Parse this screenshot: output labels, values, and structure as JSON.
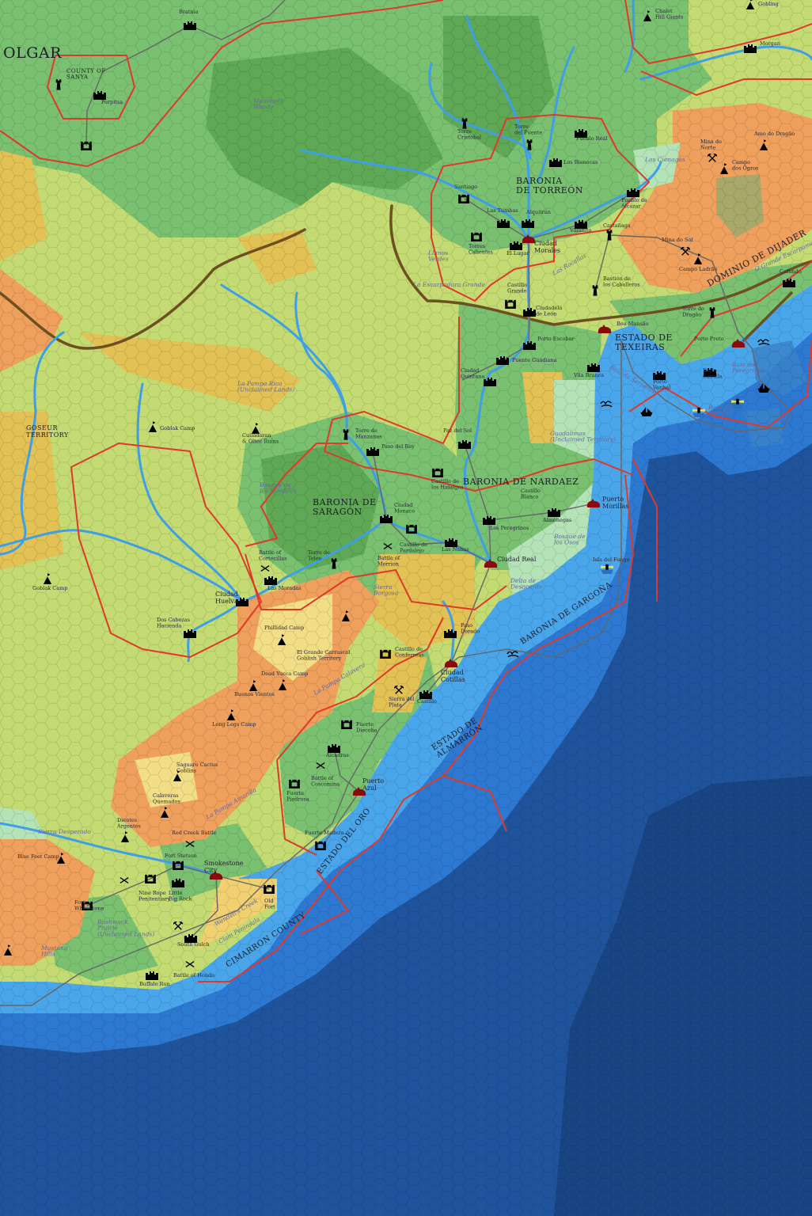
{
  "colors": {
    "deepest_sea": "#184482",
    "deep_sea": "#1f549c",
    "sea": "#2d79d2",
    "shallow_sea": "#4aa6ea",
    "grassland": "#c3db72",
    "forest": "#79c070",
    "dense_forest": "#5fa856",
    "hills": "#e2c155",
    "desert": "#eea05c",
    "cactus_desert": "#f2de86",
    "swamp": "#b5e3b8",
    "beach": "#f0d070",
    "border": "#e0392a",
    "river": "#3f9fe6",
    "road": "#666666",
    "escarpment": "#6e4f22",
    "city": "#8b0b0b"
  },
  "icon_types": [
    "castle-icon",
    "fort-icon",
    "tower-icon",
    "city-icon",
    "camp-icon",
    "battle-icon",
    "mine-icon",
    "ship-icon",
    "lighthouse-icon",
    "sea-monster-icon"
  ],
  "labels": [
    {
      "kind": "realm",
      "text": [
        "OLGAR"
      ]
    },
    {
      "kind": "realm",
      "text": [
        "COUNTY OF",
        "SANYA"
      ]
    },
    {
      "kind": "realm",
      "text": [
        "BARONIA",
        "DE TORREÓN"
      ]
    },
    {
      "kind": "realm",
      "text": [
        "BARONIA DE",
        "SARAGÓN"
      ]
    },
    {
      "kind": "realm",
      "text": [
        "BARONIA DE NARDAEZ"
      ]
    },
    {
      "kind": "realm",
      "text": [
        "ESTADO DE",
        "TEXEIRAS"
      ]
    },
    {
      "kind": "realm",
      "text": [
        "DOMINIO DE DIJADER"
      ]
    },
    {
      "kind": "realm",
      "text": [
        "BARONIA DE GARGOÑA"
      ]
    },
    {
      "kind": "realm",
      "text": [
        "ESTADO DE",
        "ALMARRÓN"
      ]
    },
    {
      "kind": "realm",
      "text": [
        "ESTADO DEL ORO"
      ]
    },
    {
      "kind": "realm",
      "text": [
        "CIMARRON COUNTY"
      ]
    },
    {
      "kind": "realm",
      "text": [
        "GOSEUR",
        "TERRITORY"
      ]
    },
    {
      "kind": "place",
      "text": [
        "Bratnia"
      ]
    },
    {
      "kind": "place",
      "text": [
        "Perpitsa"
      ]
    },
    {
      "kind": "feature",
      "text": [
        "Mammoth",
        "Woods"
      ]
    },
    {
      "kind": "place",
      "text": [
        "Chalet",
        "Hill Giants"
      ]
    },
    {
      "kind": "place",
      "text": [
        "Gobling"
      ]
    },
    {
      "kind": "place",
      "text": [
        "Morgan"
      ]
    },
    {
      "kind": "place",
      "text": [
        "Torre",
        "Cristobal"
      ]
    },
    {
      "kind": "place",
      "text": [
        "Torre",
        "del Puente"
      ]
    },
    {
      "kind": "place",
      "text": [
        "Pueblo Real"
      ]
    },
    {
      "kind": "place",
      "text": [
        "Los Bionocas"
      ]
    },
    {
      "kind": "feature",
      "text": [
        "Las Cienagas"
      ]
    },
    {
      "kind": "place",
      "text": [
        "Amo do Dragão"
      ]
    },
    {
      "kind": "place",
      "text": [
        "Mina do",
        "Norte"
      ]
    },
    {
      "kind": "place",
      "text": [
        "Campo",
        "dos Ogros"
      ]
    },
    {
      "kind": "place",
      "text": [
        "Santiago"
      ]
    },
    {
      "kind": "place",
      "text": [
        "Las Tumbas"
      ]
    },
    {
      "kind": "place",
      "text": [
        "Alquitrán"
      ]
    },
    {
      "kind": "place",
      "text": [
        "Pueblo de",
        "Alcázar"
      ]
    },
    {
      "kind": "place",
      "text": [
        "Castañaga"
      ]
    },
    {
      "kind": "place",
      "text": [
        "Villanita"
      ]
    },
    {
      "kind": "place",
      "text": [
        "Torres",
        "Calientes"
      ]
    },
    {
      "kind": "place",
      "text": [
        "El Lugar"
      ]
    },
    {
      "kind": "city",
      "text": [
        "Ciudad",
        "Morales"
      ]
    },
    {
      "kind": "feature",
      "text": [
        "Llanos",
        "Verdes"
      ]
    },
    {
      "kind": "feature",
      "text": [
        "Las Rocallas"
      ]
    },
    {
      "kind": "place",
      "text": [
        "Mina do Sol"
      ]
    },
    {
      "kind": "place",
      "text": [
        "Campo Ladrão"
      ]
    },
    {
      "kind": "place",
      "text": [
        "Bastión de",
        "los Caballeros"
      ]
    },
    {
      "kind": "feature",
      "text": [
        "La Escarpadura Grande"
      ]
    },
    {
      "kind": "place",
      "text": [
        "Castillo",
        "Grande"
      ]
    },
    {
      "kind": "place",
      "text": [
        "Ciudadela",
        "de León"
      ]
    },
    {
      "kind": "place",
      "text": [
        "Boa Mansão"
      ]
    },
    {
      "kind": "place",
      "text": [
        "Torre do",
        "Dragão"
      ]
    },
    {
      "kind": "feature",
      "text": [
        "O Grande Escarpamento"
      ]
    },
    {
      "kind": "place",
      "text": [
        "Cofundo"
      ]
    },
    {
      "kind": "place",
      "text": [
        "Porto Preto"
      ]
    },
    {
      "kind": "place",
      "text": [
        "Porto Escobar"
      ]
    },
    {
      "kind": "place",
      "text": [
        "Puente Guadiana"
      ]
    },
    {
      "kind": "place",
      "text": [
        "Vila Branca"
      ]
    },
    {
      "kind": "place",
      "text": [
        "Ciudad",
        "Quintana"
      ]
    },
    {
      "kind": "feature",
      "text": [
        "Baía da Serpente"
      ]
    },
    {
      "kind": "place",
      "text": [
        "Porto",
        "Vanhal"
      ]
    },
    {
      "kind": "place",
      "text": [
        "Della",
        "Castilla"
      ]
    },
    {
      "kind": "feature",
      "text": [
        "Baía dos",
        "Peregrinos"
      ]
    },
    {
      "kind": "feature",
      "text": [
        "Baía das",
        "Ondas"
      ]
    },
    {
      "kind": "feature",
      "text": [
        "Guadalimas",
        "(Unclaimed Territory)"
      ]
    },
    {
      "kind": "place",
      "text": [
        "Paz del Sol"
      ]
    },
    {
      "kind": "place",
      "text": [
        "Torre de",
        "Manzanas"
      ]
    },
    {
      "kind": "place",
      "text": [
        "Paso del Rey"
      ]
    },
    {
      "kind": "feature",
      "text": [
        "La Pampa Rica",
        "(Unclaimed Lands)"
      ]
    },
    {
      "kind": "place",
      "text": [
        "Goblak Camp"
      ]
    },
    {
      "kind": "place",
      "text": [
        "Cuiladaran",
        "& Oltec Ruins"
      ]
    },
    {
      "kind": "feature",
      "text": [
        "Bosque de",
        "las Sombras"
      ]
    },
    {
      "kind": "place",
      "text": [
        "Castillo de",
        "los Hidalgos"
      ]
    },
    {
      "kind": "place",
      "text": [
        "Castillo",
        "Blanco"
      ]
    },
    {
      "kind": "place",
      "text": [
        "Ciudad",
        "Monaco"
      ]
    },
    {
      "kind": "place",
      "text": [
        "Almenegas"
      ]
    },
    {
      "kind": "place",
      "text": [
        "Los Peregrinos"
      ]
    },
    {
      "kind": "city",
      "text": [
        "Puerto",
        "Morillas"
      ]
    },
    {
      "kind": "place",
      "text": [
        "Castillo de",
        "Pardalejo"
      ]
    },
    {
      "kind": "place",
      "text": [
        "Las Nanas"
      ]
    },
    {
      "kind": "feature",
      "text": [
        "Bosque de",
        "los Osos"
      ]
    },
    {
      "kind": "city",
      "text": [
        "Ciudad Real"
      ]
    },
    {
      "kind": "place",
      "text": [
        "Isla del Fuego"
      ]
    },
    {
      "kind": "place",
      "text": [
        "Battle of",
        "Cortecillas"
      ]
    },
    {
      "kind": "place",
      "text": [
        "Torre de",
        "Teleo"
      ]
    },
    {
      "kind": "place",
      "text": [
        "Battle of",
        "Morrion"
      ]
    },
    {
      "kind": "place",
      "text": [
        "Las Moradas"
      ]
    },
    {
      "kind": "feature",
      "text": [
        "Sierra",
        "Borgosa"
      ]
    },
    {
      "kind": "feature",
      "text": [
        "Delta de",
        "Desacerde"
      ]
    },
    {
      "kind": "city",
      "text": [
        "Ciudad",
        "Huelva"
      ]
    },
    {
      "kind": "place",
      "text": [
        "Goblak Camp"
      ]
    },
    {
      "kind": "place",
      "text": [
        "Dos Cabezas",
        "Hacienda"
      ]
    },
    {
      "kind": "place",
      "text": [
        "Phillidad Camp"
      ]
    },
    {
      "kind": "place",
      "text": [
        "Paso",
        "Dorado"
      ]
    },
    {
      "kind": "place",
      "text": [
        "Castillo de",
        "Conferreas"
      ]
    },
    {
      "kind": "place",
      "text": [
        "El Grande Carrascal",
        "Goblish Territory"
      ]
    },
    {
      "kind": "place",
      "text": [
        "Dead Yucca Camp"
      ]
    },
    {
      "kind": "place",
      "text": [
        "Buenos Vientos"
      ]
    },
    {
      "kind": "feature",
      "text": [
        "La Pampa Calavera"
      ]
    },
    {
      "kind": "city",
      "text": [
        "Ciudad",
        "Cotillas"
      ]
    },
    {
      "kind": "place",
      "text": [
        "Sierra del",
        "Plata"
      ]
    },
    {
      "kind": "place",
      "text": [
        "Castillo"
      ]
    },
    {
      "kind": "place",
      "text": [
        "Long Legs Camp"
      ]
    },
    {
      "kind": "place",
      "text": [
        "Fuerte",
        "Diecoba"
      ]
    },
    {
      "kind": "place",
      "text": [
        "Alcadras"
      ]
    },
    {
      "kind": "place",
      "text": [
        "Saguaro Cactus",
        "Goblins"
      ]
    },
    {
      "kind": "place",
      "text": [
        "Calaveras",
        "Quemados"
      ]
    },
    {
      "kind": "feature",
      "text": [
        "La Pampa Amarilla"
      ]
    },
    {
      "kind": "place",
      "text": [
        "Battle of",
        "Coscomina"
      ]
    },
    {
      "kind": "place",
      "text": [
        "Fuerte",
        "Piedrosa"
      ]
    },
    {
      "kind": "city",
      "text": [
        "Puerto",
        "Azul"
      ]
    },
    {
      "kind": "place",
      "text": [
        "Dientes",
        "Argentos"
      ]
    },
    {
      "kind": "place",
      "text": [
        "Red Creek Battle"
      ]
    },
    {
      "kind": "place",
      "text": [
        "Fuerte Madera"
      ]
    },
    {
      "kind": "feature",
      "text": [
        "Sierra Desperado"
      ]
    },
    {
      "kind": "place",
      "text": [
        "Blue Feet Camp"
      ]
    },
    {
      "kind": "place",
      "text": [
        "Fort Stetson"
      ]
    },
    {
      "kind": "city",
      "text": [
        "Smokestone",
        "City"
      ]
    },
    {
      "kind": "place",
      "text": [
        "Nine Rope",
        "Penitentiary"
      ]
    },
    {
      "kind": "place",
      "text": [
        "Little",
        "Big Rock"
      ]
    },
    {
      "kind": "place",
      "text": [
        "Fort",
        "Whitestone"
      ]
    },
    {
      "kind": "place",
      "text": [
        "Old",
        "Fort"
      ]
    },
    {
      "kind": "feature",
      "text": [
        "Wendell's Creek"
      ]
    },
    {
      "kind": "feature",
      "text": [
        "Clam Peninsula"
      ]
    },
    {
      "kind": "feature",
      "text": [
        "Bushwack",
        "Prairie",
        "(Unclaimed Lands)"
      ]
    },
    {
      "kind": "feature",
      "text": [
        "Mustang",
        "Hills"
      ]
    },
    {
      "kind": "place",
      "text": [
        "South Gulch"
      ]
    },
    {
      "kind": "place",
      "text": [
        "Buffalo Run"
      ]
    },
    {
      "kind": "place",
      "text": [
        "Battle of Hondo"
      ]
    }
  ]
}
